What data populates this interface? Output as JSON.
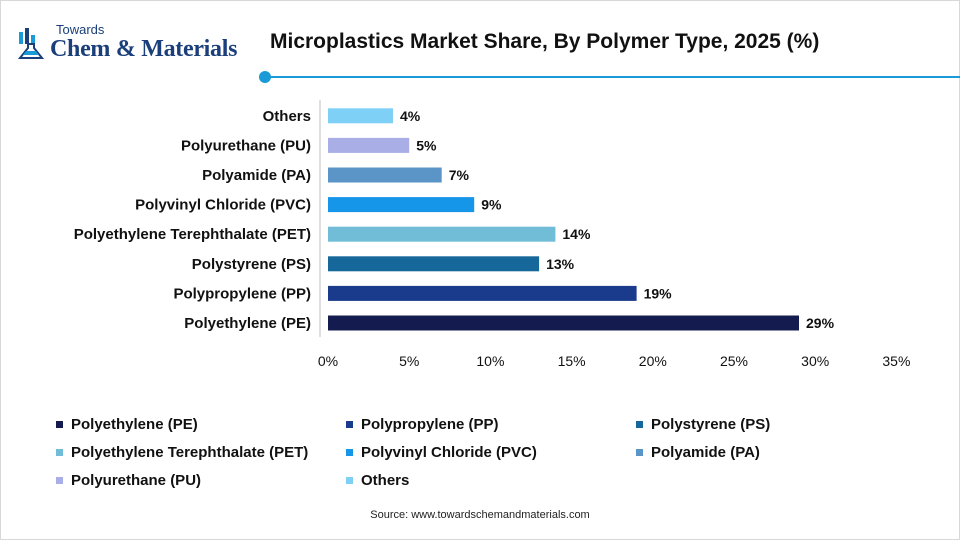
{
  "brand": {
    "line1": "Towards",
    "line2": "Chem & Materials",
    "colors": {
      "primary": "#1b3f7a",
      "accent": "#1a9ad6"
    },
    "icon": "flask-chart-icon"
  },
  "header": {
    "title": "Microplastics Market Share, By Polymer Type, 2025 (%)",
    "rule_color": "#1a9ad6"
  },
  "chart_data": {
    "type": "bar",
    "orientation": "horizontal",
    "title": "Microplastics Market Share, By Polymer Type, 2025 (%)",
    "xlabel": "",
    "ylabel": "",
    "xlim": [
      0,
      35
    ],
    "x_ticks": [
      0,
      5,
      10,
      15,
      20,
      25,
      30,
      35
    ],
    "x_tick_labels": [
      "0%",
      "5%",
      "10%",
      "15%",
      "20%",
      "25%",
      "30%",
      "35%"
    ],
    "grid": false,
    "legend_position": "bottom",
    "categories": [
      "Polyethylene (PE)",
      "Polypropylene (PP)",
      "Polystyrene (PS)",
      "Polyethylene Terephthalate (PET)",
      "Polyvinyl Chloride (PVC)",
      "Polyamide (PA)",
      "Polyurethane (PU)",
      "Others"
    ],
    "values": [
      29,
      19,
      13,
      14,
      9,
      7,
      5,
      4
    ],
    "value_labels": [
      "29%",
      "19%",
      "13%",
      "14%",
      "9%",
      "7%",
      "5%",
      "4%"
    ],
    "colors": [
      "#141c4f",
      "#1a3a8c",
      "#16689a",
      "#71bdd8",
      "#1696e8",
      "#5b95c7",
      "#a9aee6",
      "#7ed0f7"
    ]
  },
  "legend": {
    "items": [
      "Polyethylene (PE)",
      "Polypropylene (PP)",
      "Polystyrene (PS)",
      "Polyethylene Terephthalate (PET)",
      "Polyvinyl Chloride (PVC)",
      "Polyamide (PA)",
      "Polyurethane (PU)",
      "Others"
    ]
  },
  "footer": {
    "source": "Source: www.towardschemandmaterials.com"
  }
}
